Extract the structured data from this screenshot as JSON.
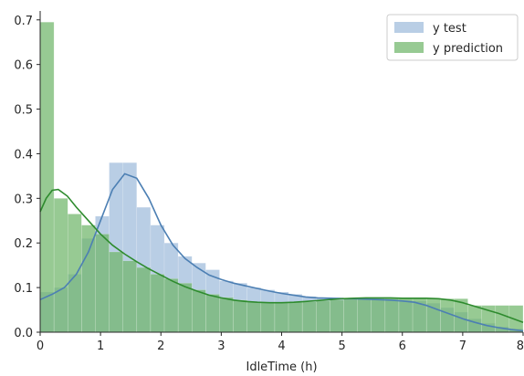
{
  "chart_data": {
    "type": "bar",
    "xlabel": "IdleTime (h)",
    "ylabel": "",
    "xlim": [
      0,
      8
    ],
    "ylim": [
      0,
      0.72
    ],
    "xticks": [
      "0",
      "1",
      "2",
      "3",
      "4",
      "5",
      "6",
      "7",
      "8"
    ],
    "yticks": [
      "0.0",
      "0.1",
      "0.2",
      "0.3",
      "0.4",
      "0.5",
      "0.6",
      "0.7"
    ],
    "legend_position": "top-right",
    "bin_width": 0.2286,
    "series": [
      {
        "name": "y test",
        "color": "#7fa6cf",
        "kde_color": "#4c7fb3",
        "hist": [
          {
            "x0": 0.0,
            "value": 0.09
          },
          {
            "x0": 0.229,
            "value": 0.1
          },
          {
            "x0": 0.457,
            "value": 0.13
          },
          {
            "x0": 0.686,
            "value": 0.21
          },
          {
            "x0": 0.914,
            "value": 0.26
          },
          {
            "x0": 1.143,
            "value": 0.38
          },
          {
            "x0": 1.371,
            "value": 0.38
          },
          {
            "x0": 1.6,
            "value": 0.28
          },
          {
            "x0": 1.829,
            "value": 0.24
          },
          {
            "x0": 2.057,
            "value": 0.2
          },
          {
            "x0": 2.286,
            "value": 0.17
          },
          {
            "x0": 2.514,
            "value": 0.155
          },
          {
            "x0": 2.743,
            "value": 0.14
          },
          {
            "x0": 2.971,
            "value": 0.115
          },
          {
            "x0": 3.2,
            "value": 0.11
          },
          {
            "x0": 3.429,
            "value": 0.1
          },
          {
            "x0": 3.657,
            "value": 0.095
          },
          {
            "x0": 3.886,
            "value": 0.09
          },
          {
            "x0": 4.114,
            "value": 0.085
          },
          {
            "x0": 4.343,
            "value": 0.08
          },
          {
            "x0": 4.571,
            "value": 0.078
          },
          {
            "x0": 4.8,
            "value": 0.078
          },
          {
            "x0": 5.029,
            "value": 0.076
          },
          {
            "x0": 5.257,
            "value": 0.075
          },
          {
            "x0": 5.486,
            "value": 0.074
          },
          {
            "x0": 5.714,
            "value": 0.073
          },
          {
            "x0": 5.943,
            "value": 0.072
          },
          {
            "x0": 6.171,
            "value": 0.07
          },
          {
            "x0": 6.4,
            "value": 0.065
          },
          {
            "x0": 6.629,
            "value": 0.055
          },
          {
            "x0": 6.857,
            "value": 0.045
          },
          {
            "x0": 7.086,
            "value": 0.03
          },
          {
            "x0": 7.314,
            "value": 0.02
          },
          {
            "x0": 7.543,
            "value": 0.012
          },
          {
            "x0": 7.771,
            "value": 0.008
          }
        ],
        "kde": [
          [
            0.0,
            0.073
          ],
          [
            0.2,
            0.085
          ],
          [
            0.4,
            0.1
          ],
          [
            0.6,
            0.13
          ],
          [
            0.8,
            0.18
          ],
          [
            1.0,
            0.25
          ],
          [
            1.2,
            0.32
          ],
          [
            1.4,
            0.355
          ],
          [
            1.6,
            0.345
          ],
          [
            1.8,
            0.3
          ],
          [
            2.0,
            0.24
          ],
          [
            2.2,
            0.195
          ],
          [
            2.4,
            0.165
          ],
          [
            2.6,
            0.145
          ],
          [
            2.8,
            0.128
          ],
          [
            3.0,
            0.118
          ],
          [
            3.2,
            0.11
          ],
          [
            3.4,
            0.104
          ],
          [
            3.6,
            0.098
          ],
          [
            3.8,
            0.092
          ],
          [
            4.0,
            0.087
          ],
          [
            4.2,
            0.083
          ],
          [
            4.4,
            0.079
          ],
          [
            4.6,
            0.077
          ],
          [
            4.8,
            0.076
          ],
          [
            5.0,
            0.075
          ],
          [
            5.2,
            0.075
          ],
          [
            5.4,
            0.074
          ],
          [
            5.6,
            0.073
          ],
          [
            5.8,
            0.072
          ],
          [
            6.0,
            0.07
          ],
          [
            6.2,
            0.067
          ],
          [
            6.4,
            0.06
          ],
          [
            6.6,
            0.05
          ],
          [
            6.8,
            0.04
          ],
          [
            7.0,
            0.03
          ],
          [
            7.2,
            0.022
          ],
          [
            7.4,
            0.015
          ],
          [
            7.6,
            0.01
          ],
          [
            7.8,
            0.006
          ],
          [
            8.0,
            0.003
          ]
        ]
      },
      {
        "name": "y prediction",
        "color": "#6fb56a",
        "kde_color": "#2e8b2e",
        "hist": [
          {
            "x0": 0.0,
            "value": 0.695
          },
          {
            "x0": 0.229,
            "value": 0.3
          },
          {
            "x0": 0.457,
            "value": 0.265
          },
          {
            "x0": 0.686,
            "value": 0.24
          },
          {
            "x0": 0.914,
            "value": 0.22
          },
          {
            "x0": 1.143,
            "value": 0.18
          },
          {
            "x0": 1.371,
            "value": 0.16
          },
          {
            "x0": 1.6,
            "value": 0.145
          },
          {
            "x0": 1.829,
            "value": 0.13
          },
          {
            "x0": 2.057,
            "value": 0.12
          },
          {
            "x0": 2.286,
            "value": 0.11
          },
          {
            "x0": 2.514,
            "value": 0.095
          },
          {
            "x0": 2.743,
            "value": 0.085
          },
          {
            "x0": 2.971,
            "value": 0.078
          },
          {
            "x0": 3.2,
            "value": 0.072
          },
          {
            "x0": 3.429,
            "value": 0.068
          },
          {
            "x0": 3.657,
            "value": 0.066
          },
          {
            "x0": 3.886,
            "value": 0.066
          },
          {
            "x0": 4.114,
            "value": 0.067
          },
          {
            "x0": 4.343,
            "value": 0.068
          },
          {
            "x0": 4.571,
            "value": 0.07
          },
          {
            "x0": 4.8,
            "value": 0.072
          },
          {
            "x0": 5.029,
            "value": 0.075
          },
          {
            "x0": 5.257,
            "value": 0.076
          },
          {
            "x0": 5.486,
            "value": 0.077
          },
          {
            "x0": 5.714,
            "value": 0.077
          },
          {
            "x0": 5.943,
            "value": 0.076
          },
          {
            "x0": 6.171,
            "value": 0.076
          },
          {
            "x0": 6.4,
            "value": 0.076
          },
          {
            "x0": 6.629,
            "value": 0.075
          },
          {
            "x0": 6.857,
            "value": 0.075
          },
          {
            "x0": 7.086,
            "value": 0.06
          },
          {
            "x0": 7.314,
            "value": 0.06
          },
          {
            "x0": 7.543,
            "value": 0.06
          },
          {
            "x0": 7.771,
            "value": 0.06
          }
        ],
        "kde": [
          [
            0.0,
            0.27
          ],
          [
            0.1,
            0.3
          ],
          [
            0.2,
            0.318
          ],
          [
            0.3,
            0.32
          ],
          [
            0.45,
            0.305
          ],
          [
            0.6,
            0.28
          ],
          [
            0.8,
            0.25
          ],
          [
            1.0,
            0.22
          ],
          [
            1.2,
            0.195
          ],
          [
            1.4,
            0.175
          ],
          [
            1.6,
            0.158
          ],
          [
            1.8,
            0.142
          ],
          [
            2.0,
            0.128
          ],
          [
            2.2,
            0.114
          ],
          [
            2.4,
            0.102
          ],
          [
            2.6,
            0.092
          ],
          [
            2.8,
            0.083
          ],
          [
            3.0,
            0.077
          ],
          [
            3.2,
            0.072
          ],
          [
            3.4,
            0.069
          ],
          [
            3.6,
            0.067
          ],
          [
            3.8,
            0.066
          ],
          [
            4.0,
            0.066
          ],
          [
            4.2,
            0.067
          ],
          [
            4.4,
            0.069
          ],
          [
            4.6,
            0.071
          ],
          [
            4.8,
            0.073
          ],
          [
            5.0,
            0.075
          ],
          [
            5.2,
            0.076
          ],
          [
            5.4,
            0.077
          ],
          [
            5.6,
            0.077
          ],
          [
            5.8,
            0.077
          ],
          [
            6.0,
            0.076
          ],
          [
            6.2,
            0.076
          ],
          [
            6.4,
            0.076
          ],
          [
            6.6,
            0.075
          ],
          [
            6.8,
            0.072
          ],
          [
            7.0,
            0.066
          ],
          [
            7.2,
            0.058
          ],
          [
            7.4,
            0.05
          ],
          [
            7.6,
            0.042
          ],
          [
            7.8,
            0.032
          ],
          [
            8.0,
            0.022
          ]
        ]
      }
    ]
  }
}
